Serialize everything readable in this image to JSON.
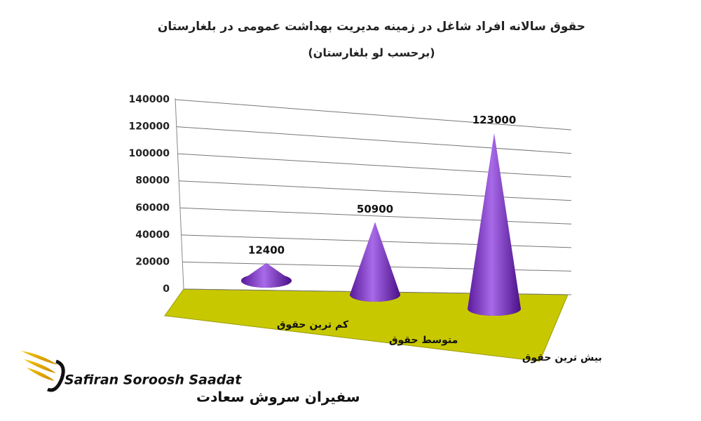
{
  "chart_data": {
    "type": "cone",
    "title": "حقوق سالانه افراد شاغل در زمینه مدیریت بهداشت عمومی در بلغارستان",
    "subtitle": "(برحسب لو بلغارستان)",
    "categories": [
      "کم ترین حقوق",
      "متوسط حقوق",
      "بیش ترین حقوق"
    ],
    "values": [
      12400,
      50900,
      123000
    ],
    "color": "#7a2fc4",
    "ylim": [
      0,
      140000
    ],
    "yticks": [
      0,
      20000,
      40000,
      60000,
      80000,
      100000,
      120000,
      140000
    ],
    "grid": true
  },
  "logo": {
    "name_en": "Safiran Soroosh Saadat",
    "name_fa": "سفیران سروش سعادت"
  }
}
